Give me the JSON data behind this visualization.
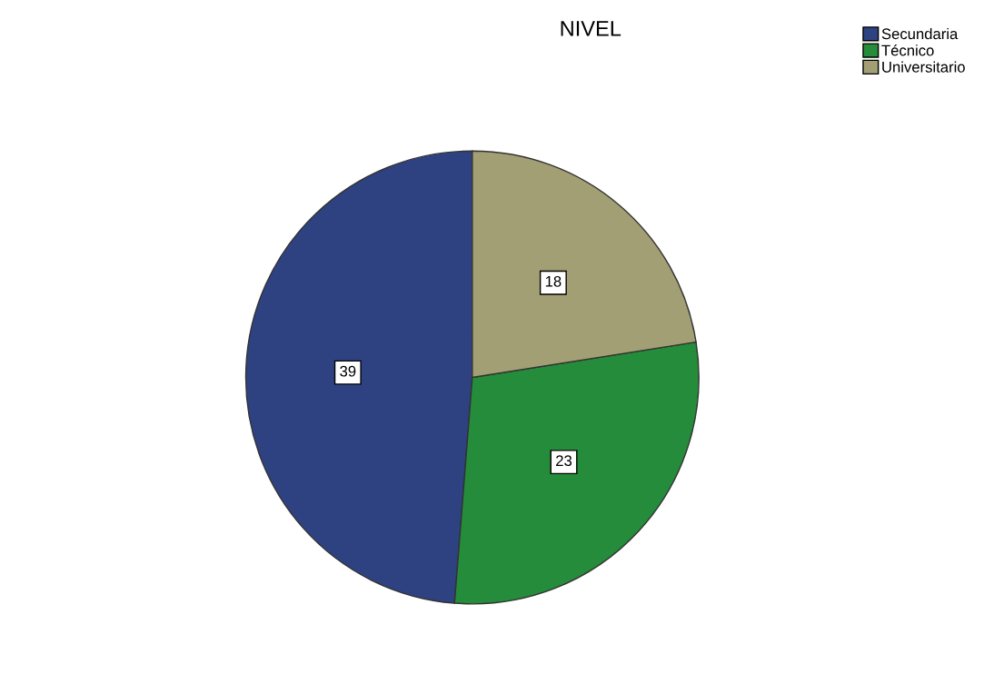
{
  "chart_data": {
    "type": "pie",
    "title": "NIVEL",
    "categories": [
      "Secundaria",
      "Técnico",
      "Universitario"
    ],
    "values": [
      39,
      23,
      18
    ],
    "colors": [
      "#2e4282",
      "#248c3a",
      "#a29f74"
    ],
    "data_labels": true,
    "legend": "top right"
  }
}
